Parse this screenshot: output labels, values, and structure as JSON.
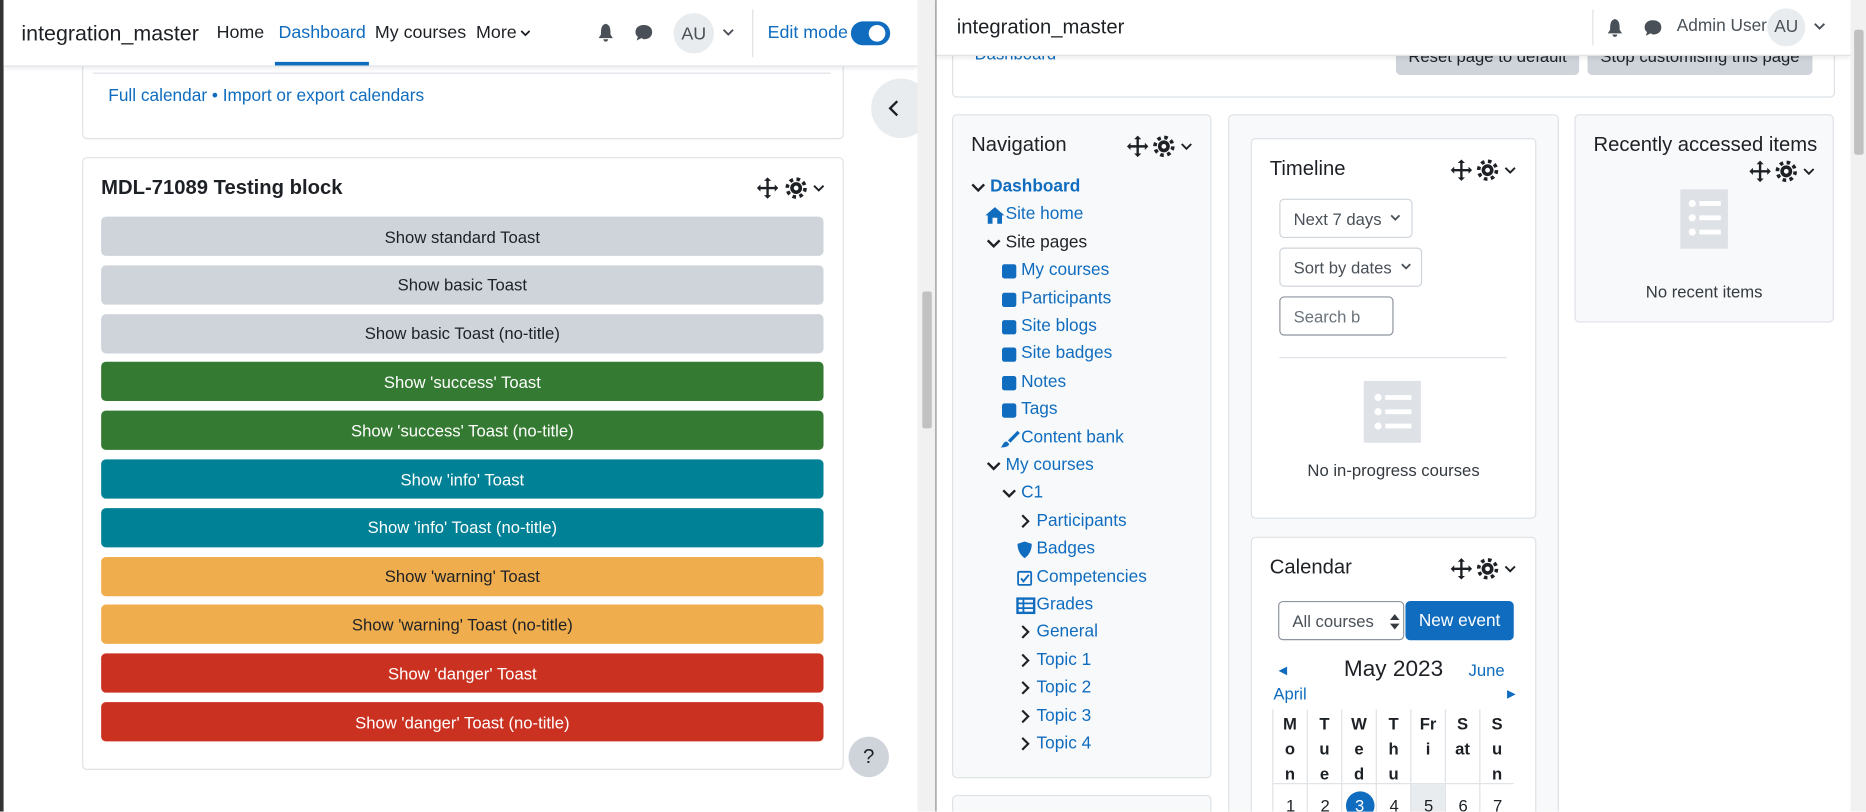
{
  "left": {
    "header": {
      "site": "integration_master",
      "nav": [
        "Home",
        "Dashboard",
        "My courses",
        "More"
      ],
      "active": 1,
      "avatar": "AU",
      "edit_mode": "Edit mode"
    },
    "calendar_links": {
      "full": "Full calendar",
      "separator": "•",
      "import": "Import or export calendars"
    },
    "block": {
      "title": "MDL-71089 Testing block",
      "buttons": [
        {
          "label": "Show standard Toast",
          "style": "secondary"
        },
        {
          "label": "Show basic Toast",
          "style": "secondary"
        },
        {
          "label": "Show basic Toast (no-title)",
          "style": "secondary"
        },
        {
          "label": "Show 'success' Toast",
          "style": "success"
        },
        {
          "label": "Show 'success' Toast (no-title)",
          "style": "success"
        },
        {
          "label": "Show 'info' Toast",
          "style": "info"
        },
        {
          "label": "Show 'info' Toast (no-title)",
          "style": "info"
        },
        {
          "label": "Show 'warning' Toast",
          "style": "warning"
        },
        {
          "label": "Show 'warning' Toast (no-title)",
          "style": "warning"
        },
        {
          "label": "Show 'danger' Toast",
          "style": "danger"
        },
        {
          "label": "Show 'danger' Toast (no-title)",
          "style": "danger"
        }
      ]
    },
    "help": "?"
  },
  "right": {
    "header": {
      "site": "integration_master",
      "user": "Admin User",
      "avatar": "AU"
    },
    "top": {
      "link": "Dashboard",
      "reset": "Reset page to default",
      "stop": "Stop customising this page"
    },
    "navigation": {
      "title": "Navigation",
      "items": [
        {
          "label": "Dashboard",
          "level": 0,
          "icon": "expanded",
          "bold": true
        },
        {
          "label": "Site home",
          "level": 1,
          "icon": "home"
        },
        {
          "label": "Site pages",
          "level": 1,
          "icon": "expanded",
          "plain": true
        },
        {
          "label": "My courses",
          "level": 2,
          "icon": "square"
        },
        {
          "label": "Participants",
          "level": 2,
          "icon": "square"
        },
        {
          "label": "Site blogs",
          "level": 2,
          "icon": "square"
        },
        {
          "label": "Site badges",
          "level": 2,
          "icon": "square"
        },
        {
          "label": "Notes",
          "level": 2,
          "icon": "square"
        },
        {
          "label": "Tags",
          "level": 2,
          "icon": "square"
        },
        {
          "label": "Content bank",
          "level": 2,
          "icon": "brush"
        },
        {
          "label": "My courses",
          "level": 1,
          "icon": "expanded"
        },
        {
          "label": "C1",
          "level": 2,
          "icon": "expanded"
        },
        {
          "label": "Participants",
          "level": 3,
          "icon": "collapsed"
        },
        {
          "label": "Badges",
          "level": 3,
          "icon": "shield"
        },
        {
          "label": "Competencies",
          "level": 3,
          "icon": "check"
        },
        {
          "label": "Grades",
          "level": 3,
          "icon": "table"
        },
        {
          "label": "General",
          "level": 3,
          "icon": "collapsed"
        },
        {
          "label": "Topic 1",
          "level": 3,
          "icon": "collapsed"
        },
        {
          "label": "Topic 2",
          "level": 3,
          "icon": "collapsed"
        },
        {
          "label": "Topic 3",
          "level": 3,
          "icon": "collapsed"
        },
        {
          "label": "Topic 4",
          "level": 3,
          "icon": "collapsed"
        }
      ]
    },
    "timeline": {
      "title": "Timeline",
      "filters": [
        "Next 7 days",
        "Sort by dates"
      ],
      "search": "Search b",
      "empty": "No in-progress courses"
    },
    "calendar": {
      "title": "Calendar",
      "course_select": "All courses",
      "new_event": "New event",
      "prev_arrow": "◄",
      "prev": "April",
      "month": "May 2023",
      "next": "June",
      "next_arrow": "►",
      "weekdays": [
        "Mon",
        "Tue",
        "Wed",
        "Thu",
        "Fri",
        "Sat",
        "Sun"
      ],
      "days": [
        1,
        2,
        3,
        4,
        5,
        6,
        7
      ],
      "today": 2,
      "weekend_shade": 4
    },
    "recent": {
      "title": "Recently accessed items",
      "empty": "No recent items"
    }
  }
}
